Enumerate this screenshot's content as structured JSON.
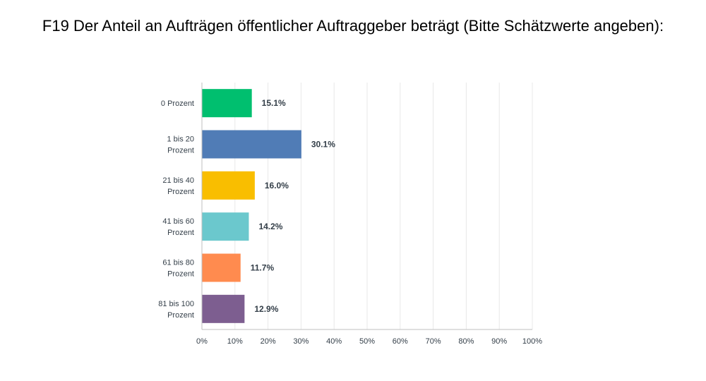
{
  "chart_data": {
    "type": "bar",
    "orientation": "horizontal",
    "title": "F19 Der Anteil an Aufträgen öffentlicher Auftraggeber beträgt (Bitte Schätzwerte angeben):",
    "categories": [
      [
        "0 Prozent"
      ],
      [
        "1 bis 20",
        "Prozent"
      ],
      [
        "21 bis 40",
        "Prozent"
      ],
      [
        "41 bis 60",
        "Prozent"
      ],
      [
        "61 bis 80",
        "Prozent"
      ],
      [
        "81 bis 100",
        "Prozent"
      ]
    ],
    "values": [
      15.1,
      30.1,
      16.0,
      14.2,
      11.7,
      12.9
    ],
    "value_labels": [
      "15.1%",
      "30.1%",
      "16.0%",
      "14.2%",
      "11.7%",
      "12.9%"
    ],
    "colors": [
      "#00bf6f",
      "#507cb6",
      "#f9be00",
      "#6bc8cd",
      "#ff8b4f",
      "#7d5e90"
    ],
    "xlim": [
      0,
      100
    ],
    "xticks": [
      "0%",
      "10%",
      "20%",
      "30%",
      "40%",
      "50%",
      "60%",
      "70%",
      "80%",
      "90%",
      "100%"
    ],
    "grid": true,
    "xlabel": "",
    "ylabel": ""
  }
}
